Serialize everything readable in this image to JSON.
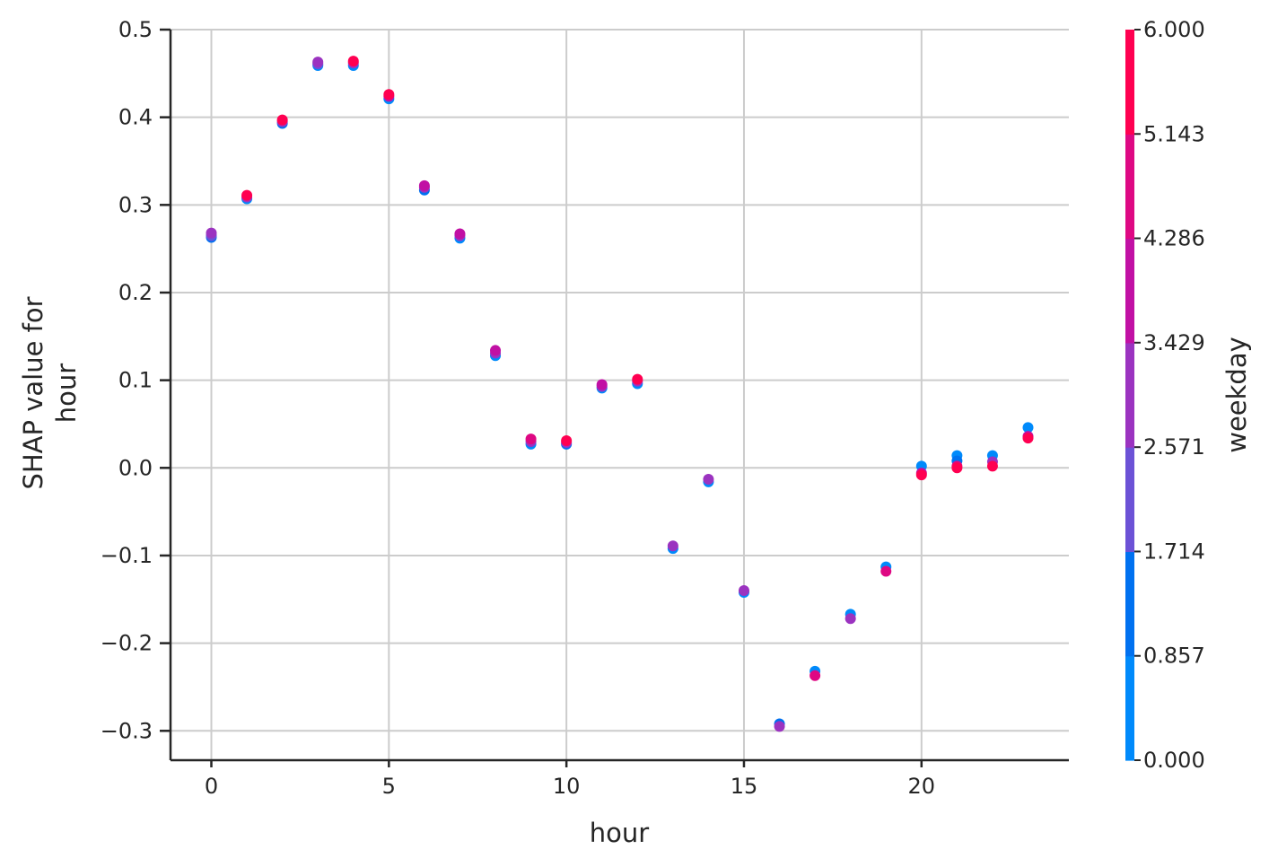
{
  "chart_data": {
    "type": "scatter",
    "xlabel": "hour",
    "ylabel_lines": [
      "SHAP value for",
      "hour"
    ],
    "xlim": [
      -1.15,
      24.15
    ],
    "ylim": [
      -0.3335,
      0.5
    ],
    "x_ticks": [
      0,
      5,
      10,
      15,
      20
    ],
    "x_tick_labels": [
      "0",
      "5",
      "10",
      "15",
      "20"
    ],
    "y_ticks": [
      0.5,
      0.4,
      0.3,
      0.2,
      0.1,
      0.0,
      -0.1,
      -0.2,
      -0.3
    ],
    "y_tick_labels": [
      "0.5",
      "0.4",
      "0.3",
      "0.2",
      "0.1",
      "0.0",
      "−0.1",
      "−0.2",
      "−0.3"
    ],
    "grid": true,
    "colorbar": {
      "label": "weekday",
      "range": [
        0,
        6
      ],
      "tick_values": [
        6.0,
        5.143,
        4.286,
        3.429,
        2.571,
        1.714,
        0.857,
        0.0
      ],
      "tick_labels": [
        "6.000",
        "5.143",
        "4.286",
        "3.429",
        "2.571",
        "1.714",
        "0.857",
        "0.000"
      ],
      "colors": [
        "#008afb",
        "#0071f0",
        "#6c52d6",
        "#9b33c0",
        "#c110a4",
        "#de0883",
        "#ff0051"
      ]
    },
    "points": [
      {
        "x": 0,
        "y": 0.263,
        "c": 1
      },
      {
        "x": 0,
        "y": 0.265,
        "c": 2
      },
      {
        "x": 0,
        "y": 0.268,
        "c": 3
      },
      {
        "x": 1,
        "y": 0.307,
        "c": 0
      },
      {
        "x": 1,
        "y": 0.309,
        "c": 3
      },
      {
        "x": 1,
        "y": 0.311,
        "c": 6
      },
      {
        "x": 2,
        "y": 0.393,
        "c": 1
      },
      {
        "x": 2,
        "y": 0.395,
        "c": 3
      },
      {
        "x": 2,
        "y": 0.397,
        "c": 6
      },
      {
        "x": 3,
        "y": 0.459,
        "c": 0
      },
      {
        "x": 3,
        "y": 0.461,
        "c": 2
      },
      {
        "x": 3,
        "y": 0.463,
        "c": 3
      },
      {
        "x": 4,
        "y": 0.459,
        "c": 0
      },
      {
        "x": 4,
        "y": 0.462,
        "c": 3
      },
      {
        "x": 4,
        "y": 0.464,
        "c": 6
      },
      {
        "x": 5,
        "y": 0.421,
        "c": 0
      },
      {
        "x": 5,
        "y": 0.424,
        "c": 4
      },
      {
        "x": 5,
        "y": 0.426,
        "c": 6
      },
      {
        "x": 6,
        "y": 0.317,
        "c": 1
      },
      {
        "x": 6,
        "y": 0.32,
        "c": 3
      },
      {
        "x": 6,
        "y": 0.322,
        "c": 4
      },
      {
        "x": 7,
        "y": 0.262,
        "c": 0
      },
      {
        "x": 7,
        "y": 0.265,
        "c": 3
      },
      {
        "x": 7,
        "y": 0.267,
        "c": 4
      },
      {
        "x": 8,
        "y": 0.128,
        "c": 0
      },
      {
        "x": 8,
        "y": 0.131,
        "c": 3
      },
      {
        "x": 8,
        "y": 0.134,
        "c": 4
      },
      {
        "x": 9,
        "y": 0.027,
        "c": 0
      },
      {
        "x": 9,
        "y": 0.03,
        "c": 3
      },
      {
        "x": 9,
        "y": 0.033,
        "c": 5
      },
      {
        "x": 10,
        "y": 0.027,
        "c": 1
      },
      {
        "x": 10,
        "y": 0.029,
        "c": 3
      },
      {
        "x": 10,
        "y": 0.031,
        "c": 6
      },
      {
        "x": 11,
        "y": 0.091,
        "c": 0
      },
      {
        "x": 11,
        "y": 0.093,
        "c": 3
      },
      {
        "x": 11,
        "y": 0.095,
        "c": 4
      },
      {
        "x": 12,
        "y": 0.096,
        "c": 0
      },
      {
        "x": 12,
        "y": 0.099,
        "c": 3
      },
      {
        "x": 12,
        "y": 0.101,
        "c": 6
      },
      {
        "x": 13,
        "y": -0.092,
        "c": 0
      },
      {
        "x": 13,
        "y": -0.089,
        "c": 3
      },
      {
        "x": 14,
        "y": -0.016,
        "c": 0
      },
      {
        "x": 14,
        "y": -0.013,
        "c": 3
      },
      {
        "x": 15,
        "y": -0.142,
        "c": 0
      },
      {
        "x": 15,
        "y": -0.14,
        "c": 3
      },
      {
        "x": 16,
        "y": -0.292,
        "c": 1
      },
      {
        "x": 16,
        "y": -0.295,
        "c": 3
      },
      {
        "x": 17,
        "y": -0.232,
        "c": 0
      },
      {
        "x": 17,
        "y": -0.237,
        "c": 5
      },
      {
        "x": 18,
        "y": -0.167,
        "c": 0
      },
      {
        "x": 18,
        "y": -0.172,
        "c": 3
      },
      {
        "x": 19,
        "y": -0.113,
        "c": 0
      },
      {
        "x": 19,
        "y": -0.118,
        "c": 5
      },
      {
        "x": 20,
        "y": 0.002,
        "c": 0
      },
      {
        "x": 20,
        "y": -0.006,
        "c": 4
      },
      {
        "x": 20,
        "y": -0.008,
        "c": 6
      },
      {
        "x": 21,
        "y": 0.014,
        "c": 0
      },
      {
        "x": 21,
        "y": 0.008,
        "c": 1
      },
      {
        "x": 21,
        "y": 0.002,
        "c": 5
      },
      {
        "x": 21,
        "y": 0.0,
        "c": 6
      },
      {
        "x": 22,
        "y": 0.014,
        "c": 0
      },
      {
        "x": 22,
        "y": 0.007,
        "c": 3
      },
      {
        "x": 22,
        "y": 0.002,
        "c": 6
      },
      {
        "x": 23,
        "y": 0.046,
        "c": 0
      },
      {
        "x": 23,
        "y": 0.036,
        "c": 4
      },
      {
        "x": 23,
        "y": 0.034,
        "c": 6
      }
    ]
  }
}
